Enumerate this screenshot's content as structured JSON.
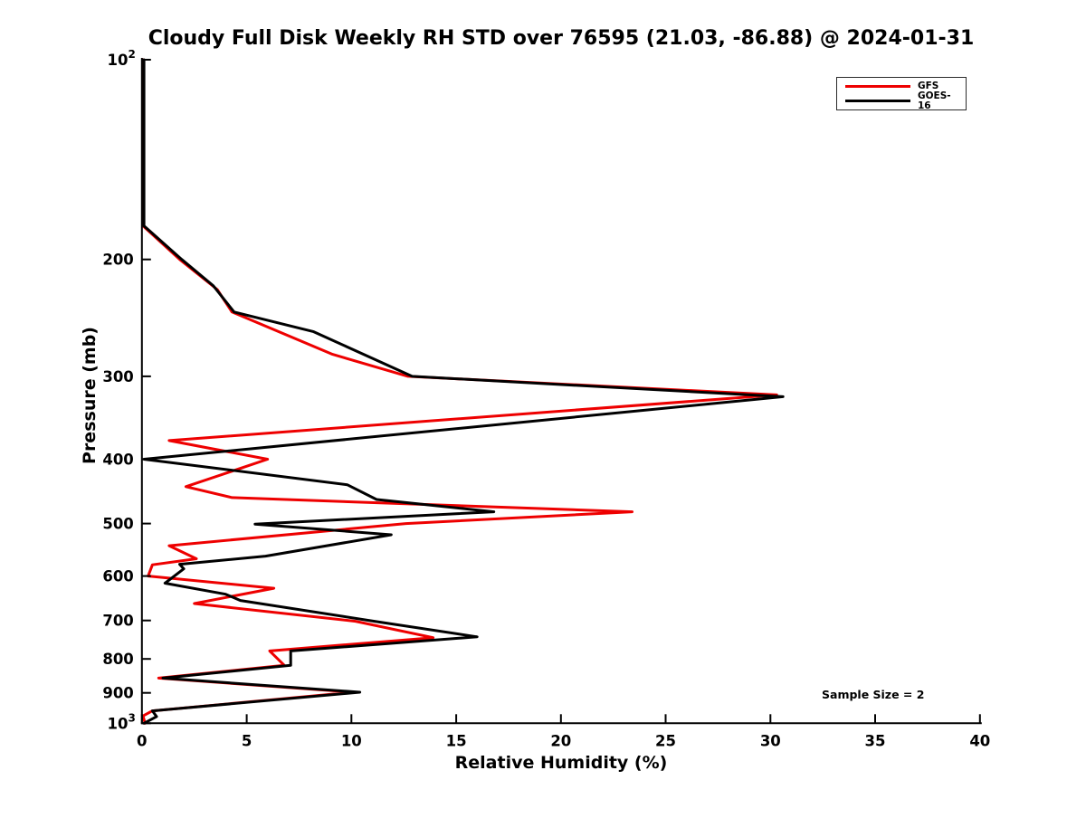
{
  "figure": {
    "title": "Cloudy Full Disk Weekly RH STD over 76595 (21.03, -86.88) @ 2024-01-31",
    "annotation": "Sample Size = 2",
    "background": "#ffffff"
  },
  "legend": {
    "position": "upper right",
    "entries": [
      {
        "label": "GFS",
        "color": "#ee0000"
      },
      {
        "label": "GOES-16",
        "color": "#000000"
      }
    ]
  },
  "chart_data": {
    "type": "line",
    "title": "Cloudy Full Disk Weekly RH STD over 76595 (21.03, -86.88) @ 2024-01-31",
    "xlabel": "Relative Humidity (%)",
    "ylabel": "Pressure (mb)",
    "xlim": [
      0,
      40
    ],
    "ylim": [
      100,
      1000
    ],
    "y_scale": "log",
    "y_inverted": true,
    "grid": false,
    "legend_position": "upper right",
    "annotation": "Sample Size = 2",
    "x_ticks": [
      0,
      5,
      10,
      15,
      20,
      25,
      30,
      35,
      40
    ],
    "y_ticks": [
      {
        "value": 100,
        "label": "10",
        "sup": "2"
      },
      {
        "value": 200,
        "label": "200"
      },
      {
        "value": 300,
        "label": "300"
      },
      {
        "value": 400,
        "label": "400"
      },
      {
        "value": 500,
        "label": "500"
      },
      {
        "value": 600,
        "label": "600"
      },
      {
        "value": 700,
        "label": "700"
      },
      {
        "value": 800,
        "label": "800"
      },
      {
        "value": 900,
        "label": "900"
      },
      {
        "value": 1000,
        "label": "10",
        "sup": "3"
      }
    ],
    "series": [
      {
        "name": "GFS",
        "color": "#ee0000",
        "points": [
          [
            100,
            0.05
          ],
          [
            178,
            0.05
          ],
          [
            200,
            1.8
          ],
          [
            222,
            3.6
          ],
          [
            240,
            4.3
          ],
          [
            278,
            9.1
          ],
          [
            300,
            12.7
          ],
          [
            320,
            30.3
          ],
          [
            375,
            1.3
          ],
          [
            400,
            6.0
          ],
          [
            440,
            2.1
          ],
          [
            457,
            4.3
          ],
          [
            480,
            23.4
          ],
          [
            500,
            12.6
          ],
          [
            540,
            1.3
          ],
          [
            565,
            2.6
          ],
          [
            577,
            0.5
          ],
          [
            600,
            0.3
          ],
          [
            626,
            6.3
          ],
          [
            660,
            2.5
          ],
          [
            702,
            10.2
          ],
          [
            743,
            13.9
          ],
          [
            778,
            6.1
          ],
          [
            818,
            6.8
          ],
          [
            855,
            0.8
          ],
          [
            898,
            10.1
          ],
          [
            958,
            0.5
          ],
          [
            975,
            0.05
          ],
          [
            1000,
            0.15
          ]
        ]
      },
      {
        "name": "GOES-16",
        "color": "#000000",
        "points": [
          [
            100,
            0.1
          ],
          [
            178,
            0.1
          ],
          [
            200,
            1.9
          ],
          [
            219,
            3.4
          ],
          [
            240,
            4.4
          ],
          [
            257,
            8.2
          ],
          [
            300,
            12.9
          ],
          [
            322,
            30.6
          ],
          [
            400,
            0.1
          ],
          [
            437,
            9.8
          ],
          [
            460,
            11.2
          ],
          [
            480,
            16.8
          ],
          [
            501,
            5.4
          ],
          [
            520,
            11.9
          ],
          [
            560,
            5.9
          ],
          [
            576,
            1.8
          ],
          [
            585,
            2.0
          ],
          [
            615,
            1.1
          ],
          [
            639,
            4.0
          ],
          [
            653,
            4.7
          ],
          [
            702,
            11.1
          ],
          [
            741,
            16.0
          ],
          [
            778,
            7.1
          ],
          [
            818,
            7.1
          ],
          [
            855,
            1.0
          ],
          [
            898,
            10.4
          ],
          [
            958,
            0.5
          ],
          [
            977,
            0.7
          ],
          [
            1000,
            0.1
          ]
        ]
      }
    ]
  }
}
